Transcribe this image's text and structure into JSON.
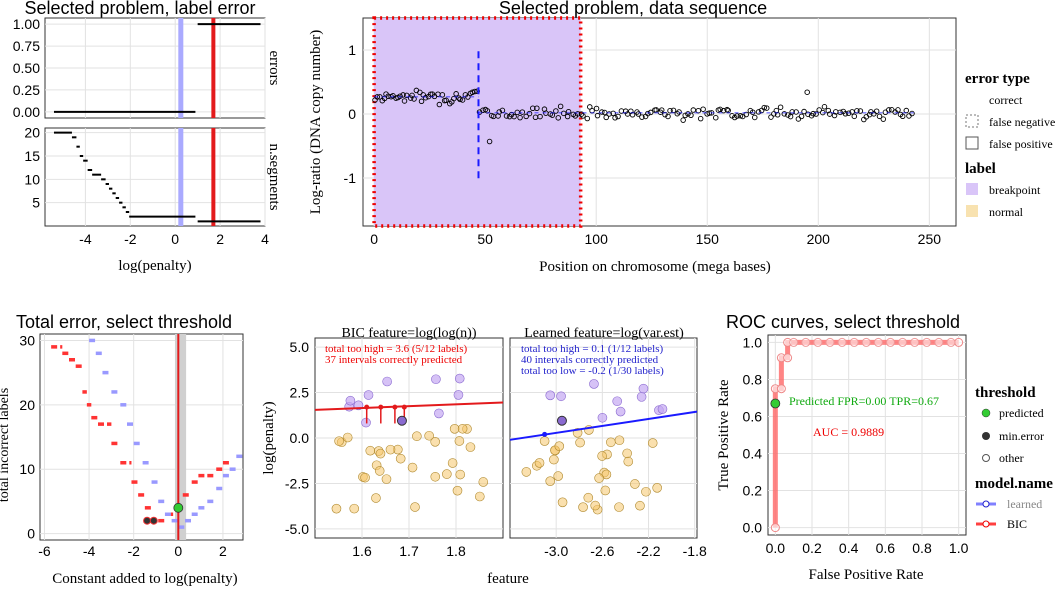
{
  "titles": {
    "label_error": "Selected problem, label error",
    "data_sequence": "Selected problem, data sequence",
    "total_error": "Total error, select threshold",
    "roc": "ROC curves, select threshold"
  },
  "strips": {
    "errors": "errors",
    "n_segments": "n.segments"
  },
  "legend_top": {
    "error_type_title": "error type",
    "error_types": [
      "correct",
      "false negative",
      "false positive"
    ],
    "label_title": "label",
    "labels": [
      "breakpoint",
      "normal"
    ]
  },
  "legend_roc": {
    "threshold_title": "threshold",
    "thresholds": [
      "predicted",
      "min.error",
      "other"
    ],
    "model_title": "model.name",
    "models": [
      "learned",
      "BIC"
    ]
  },
  "colors": {
    "breakpoint": "#a259ff",
    "normal": "#f5c76b",
    "bic": "#ff1a1a",
    "learned": "#1a1aff",
    "selected": "#e31a1c"
  },
  "annotations": {
    "bic_title": "BIC feature=log(log(n))",
    "bic_high": "total too high = 3.6 (5/12 labels)",
    "bic_correct": "37 intervals correctly predicted",
    "learned_title": "Learned feature=log(var.est)",
    "learned_high": "total too high = 0.1 (1/12 labels)",
    "learned_correct": "40 intervals correctly predicted",
    "learned_low": "total too low = -0.2 (1/30 labels)",
    "roc_pred": "Predicted FPR=0.00 TPR=0.67",
    "roc_auc": "AUC = 0.9889"
  },
  "chart_data": [
    {
      "id": "label_error",
      "type": "line",
      "title": "Selected problem, label error",
      "xlabel": "log(penalty)",
      "xlim": [
        -5.8,
        4
      ],
      "x_ticks": [
        "-4",
        "-2",
        "0",
        "2",
        "4"
      ],
      "x_tick_values": [
        -4,
        -2,
        0,
        2,
        4
      ],
      "errors_panel": {
        "ylim": [
          0,
          1
        ],
        "y_ticks": [
          "0.00",
          "0.25",
          "0.50",
          "0.75",
          "1.00"
        ],
        "steps": [
          {
            "x0": -5.4,
            "x1": 0.9,
            "y": 0
          },
          {
            "x0": 1.0,
            "x1": 3.8,
            "y": 1
          }
        ]
      },
      "nsegments_panel": {
        "ylim": [
          0,
          20
        ],
        "y_ticks": [
          "5",
          "10",
          "15",
          "20"
        ],
        "steps": [
          [
            -5.4,
            -4.6,
            20
          ],
          [
            -4.6,
            -4.4,
            19
          ],
          [
            -4.4,
            -4.25,
            17
          ],
          [
            -4.25,
            -4.1,
            15
          ],
          [
            -4.1,
            -3.9,
            14
          ],
          [
            -3.9,
            -3.7,
            12
          ],
          [
            -3.7,
            -3.3,
            11
          ],
          [
            -3.3,
            -3.1,
            10
          ],
          [
            -3.1,
            -2.95,
            9
          ],
          [
            -2.95,
            -2.8,
            8
          ],
          [
            -2.8,
            -2.65,
            7
          ],
          [
            -2.65,
            -2.5,
            6
          ],
          [
            -2.5,
            -2.35,
            5
          ],
          [
            -2.35,
            -2.2,
            4
          ],
          [
            -2.2,
            -2.05,
            3
          ],
          [
            -2.05,
            0.9,
            2
          ],
          [
            1.0,
            3.8,
            1
          ]
        ]
      },
      "selected_log_penalty": 1.7,
      "predicted_log_penalty": 0.25
    },
    {
      "id": "data_sequence",
      "type": "scatter",
      "title": "Selected problem, data sequence",
      "xlabel": "Position on chromosome (mega bases)",
      "ylabel": "Log-ratio (DNA copy number)",
      "xlim": [
        -5,
        262
      ],
      "ylim": [
        -1.75,
        1.5
      ],
      "x_ticks": [
        "0",
        "50",
        "100",
        "150",
        "200",
        "250"
      ],
      "x_tick_values": [
        0,
        50,
        100,
        150,
        200,
        250
      ],
      "y_ticks": [
        "-1",
        "0",
        "1"
      ],
      "y_tick_values": [
        -1,
        0,
        1
      ],
      "breakpoint_region": [
        0,
        93
      ],
      "predicted_breakpoint": 47,
      "segments": [
        {
          "x0": 0,
          "x1": 47,
          "mean": 0.27
        },
        {
          "x0": 47,
          "x1": 243,
          "mean": 0.02
        }
      ]
    },
    {
      "id": "total_error",
      "type": "line",
      "title": "Total error, select threshold",
      "xlabel": "Constant added to log(penalty)",
      "ylabel": "total incorrect labels",
      "xlim": [
        -6.2,
        2.9
      ],
      "ylim": [
        -1,
        31
      ],
      "x_ticks": [
        "-6",
        "-4",
        "-2",
        "0",
        "2"
      ],
      "x_tick_values": [
        -6,
        -4,
        -2,
        0,
        2
      ],
      "y_ticks": [
        "0",
        "10",
        "20",
        "30"
      ],
      "y_tick_values": [
        0,
        10,
        20,
        30
      ],
      "series": [
        {
          "name": "BIC",
          "points": [
            [
              -5.7,
              29
            ],
            [
              -5.2,
              28
            ],
            [
              -4.9,
              27
            ],
            [
              -4.6,
              26
            ],
            [
              -4.3,
              22
            ],
            [
              -4.1,
              20
            ],
            [
              -3.9,
              18
            ],
            [
              -3.6,
              17
            ],
            [
              -3.0,
              14
            ],
            [
              -2.6,
              11
            ],
            [
              -2.1,
              8
            ],
            [
              -1.8,
              6
            ],
            [
              -1.5,
              4
            ],
            [
              -1.2,
              2
            ],
            [
              -0.9,
              2
            ],
            [
              -0.5,
              3
            ],
            [
              -0.1,
              4
            ],
            [
              0.2,
              6
            ],
            [
              0.6,
              8
            ],
            [
              0.9,
              9
            ],
            [
              1.3,
              9
            ],
            [
              1.7,
              10
            ],
            [
              2.0,
              11
            ]
          ]
        },
        {
          "name": "learned",
          "points": [
            [
              -4.0,
              30
            ],
            [
              -3.7,
              28
            ],
            [
              -3.4,
              25
            ],
            [
              -3.0,
              22
            ],
            [
              -2.6,
              20
            ],
            [
              -2.3,
              17
            ],
            [
              -2.0,
              14
            ],
            [
              -1.6,
              11
            ],
            [
              -1.2,
              8
            ],
            [
              -0.9,
              5
            ],
            [
              -0.6,
              3
            ],
            [
              -0.3,
              2
            ],
            [
              0.0,
              1
            ],
            [
              0.3,
              2
            ],
            [
              0.6,
              3
            ],
            [
              0.9,
              4
            ],
            [
              1.3,
              5
            ],
            [
              1.7,
              7
            ],
            [
              2.0,
              9
            ],
            [
              2.3,
              10
            ],
            [
              2.6,
              12
            ]
          ]
        }
      ],
      "selected": {
        "x": 0.0,
        "y": 4
      },
      "min_error": [
        [
          -1.4,
          2
        ],
        [
          -1.1,
          2
        ]
      ]
    },
    {
      "id": "feature_scatter",
      "type": "scatter",
      "ylabel": "log(penalty)",
      "xlabel": "feature",
      "ylim": [
        -5.5,
        5.5
      ],
      "y_ticks": [
        "-5.0",
        "-2.5",
        "0.0",
        "2.5",
        "5.0"
      ],
      "y_tick_values": [
        -5,
        -2.5,
        0,
        2.5,
        5
      ],
      "panels": [
        {
          "name": "BIC",
          "xlim": [
            1.5,
            1.9
          ],
          "x_ticks": [
            "1.6",
            "1.7",
            "1.8"
          ],
          "x_tick_values": [
            1.6,
            1.7,
            1.8
          ],
          "line": [
            [
              1.5,
              1.55
            ],
            [
              1.9,
              1.95
            ]
          ]
        },
        {
          "name": "Learned",
          "xlim": [
            -3.4,
            -1.78
          ],
          "x_ticks": [
            "-3.0",
            "-2.6",
            "-2.2",
            "-1.8"
          ],
          "x_tick_values": [
            -3.0,
            -2.6,
            -2.2,
            -1.8
          ],
          "line": [
            [
              -3.4,
              -0.1
            ],
            [
              -1.78,
              1.45
            ]
          ]
        }
      ]
    },
    {
      "id": "roc",
      "type": "line",
      "title": "ROC curves, select threshold",
      "xlabel": "False Positive Rate",
      "ylabel": "True Positive Rate",
      "xlim": [
        -0.04,
        1.04
      ],
      "ylim": [
        -0.04,
        1.04
      ],
      "x_ticks": [
        "0.0",
        "0.2",
        "0.4",
        "0.6",
        "0.8",
        "1.0"
      ],
      "x_tick_values": [
        0,
        0.2,
        0.4,
        0.6,
        0.8,
        1.0
      ],
      "y_ticks": [
        "0.0",
        "0.2",
        "0.4",
        "0.6",
        "0.8",
        "1.0"
      ],
      "y_tick_values": [
        0,
        0.2,
        0.4,
        0.6,
        0.8,
        1.0
      ],
      "series": [
        {
          "name": "BIC",
          "points": [
            [
              0,
              0
            ],
            [
              0,
              0.67
            ],
            [
              0,
              0.75
            ],
            [
              0.033,
              0.75
            ],
            [
              0.033,
              0.917
            ],
            [
              0.067,
              0.917
            ],
            [
              0.067,
              1.0
            ],
            [
              1.0,
              1.0
            ]
          ]
        }
      ],
      "predicted": {
        "fpr": 0.0,
        "tpr": 0.67
      },
      "auc": 0.9889
    }
  ]
}
